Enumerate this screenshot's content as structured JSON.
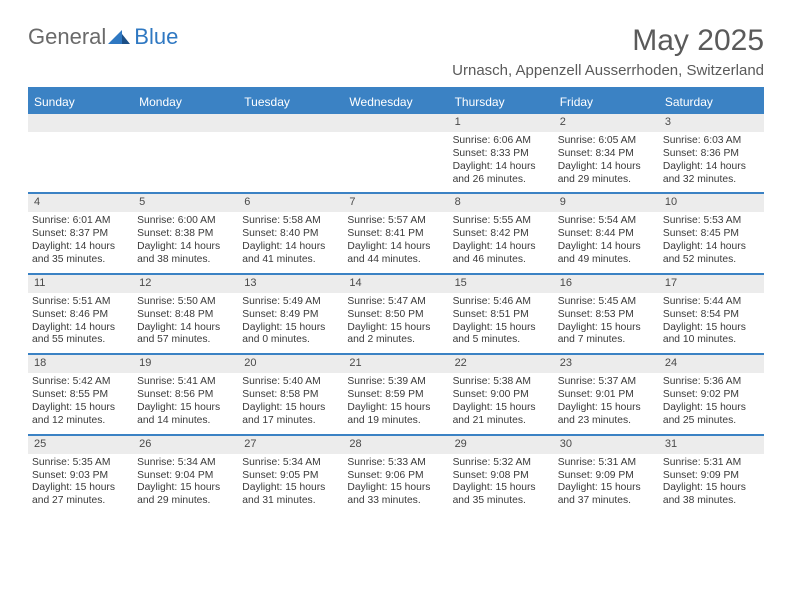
{
  "brand": {
    "part1": "General",
    "part2": "Blue"
  },
  "title": "May 2025",
  "location": "Urnasch, Appenzell Ausserrhoden, Switzerland",
  "colors": {
    "accent": "#3b82c4",
    "header_bg": "#3b82c4",
    "daynum_bg": "#ececec",
    "text": "#3a3a3a",
    "title": "#5a5a5a"
  },
  "weekdays": [
    "Sunday",
    "Monday",
    "Tuesday",
    "Wednesday",
    "Thursday",
    "Friday",
    "Saturday"
  ],
  "first_weekday_index": 4,
  "days": [
    {
      "n": 1,
      "sunrise": "6:06 AM",
      "sunset": "8:33 PM",
      "daylight": "14 hours and 26 minutes."
    },
    {
      "n": 2,
      "sunrise": "6:05 AM",
      "sunset": "8:34 PM",
      "daylight": "14 hours and 29 minutes."
    },
    {
      "n": 3,
      "sunrise": "6:03 AM",
      "sunset": "8:36 PM",
      "daylight": "14 hours and 32 minutes."
    },
    {
      "n": 4,
      "sunrise": "6:01 AM",
      "sunset": "8:37 PM",
      "daylight": "14 hours and 35 minutes."
    },
    {
      "n": 5,
      "sunrise": "6:00 AM",
      "sunset": "8:38 PM",
      "daylight": "14 hours and 38 minutes."
    },
    {
      "n": 6,
      "sunrise": "5:58 AM",
      "sunset": "8:40 PM",
      "daylight": "14 hours and 41 minutes."
    },
    {
      "n": 7,
      "sunrise": "5:57 AM",
      "sunset": "8:41 PM",
      "daylight": "14 hours and 44 minutes."
    },
    {
      "n": 8,
      "sunrise": "5:55 AM",
      "sunset": "8:42 PM",
      "daylight": "14 hours and 46 minutes."
    },
    {
      "n": 9,
      "sunrise": "5:54 AM",
      "sunset": "8:44 PM",
      "daylight": "14 hours and 49 minutes."
    },
    {
      "n": 10,
      "sunrise": "5:53 AM",
      "sunset": "8:45 PM",
      "daylight": "14 hours and 52 minutes."
    },
    {
      "n": 11,
      "sunrise": "5:51 AM",
      "sunset": "8:46 PM",
      "daylight": "14 hours and 55 minutes."
    },
    {
      "n": 12,
      "sunrise": "5:50 AM",
      "sunset": "8:48 PM",
      "daylight": "14 hours and 57 minutes."
    },
    {
      "n": 13,
      "sunrise": "5:49 AM",
      "sunset": "8:49 PM",
      "daylight": "15 hours and 0 minutes."
    },
    {
      "n": 14,
      "sunrise": "5:47 AM",
      "sunset": "8:50 PM",
      "daylight": "15 hours and 2 minutes."
    },
    {
      "n": 15,
      "sunrise": "5:46 AM",
      "sunset": "8:51 PM",
      "daylight": "15 hours and 5 minutes."
    },
    {
      "n": 16,
      "sunrise": "5:45 AM",
      "sunset": "8:53 PM",
      "daylight": "15 hours and 7 minutes."
    },
    {
      "n": 17,
      "sunrise": "5:44 AM",
      "sunset": "8:54 PM",
      "daylight": "15 hours and 10 minutes."
    },
    {
      "n": 18,
      "sunrise": "5:42 AM",
      "sunset": "8:55 PM",
      "daylight": "15 hours and 12 minutes."
    },
    {
      "n": 19,
      "sunrise": "5:41 AM",
      "sunset": "8:56 PM",
      "daylight": "15 hours and 14 minutes."
    },
    {
      "n": 20,
      "sunrise": "5:40 AM",
      "sunset": "8:58 PM",
      "daylight": "15 hours and 17 minutes."
    },
    {
      "n": 21,
      "sunrise": "5:39 AM",
      "sunset": "8:59 PM",
      "daylight": "15 hours and 19 minutes."
    },
    {
      "n": 22,
      "sunrise": "5:38 AM",
      "sunset": "9:00 PM",
      "daylight": "15 hours and 21 minutes."
    },
    {
      "n": 23,
      "sunrise": "5:37 AM",
      "sunset": "9:01 PM",
      "daylight": "15 hours and 23 minutes."
    },
    {
      "n": 24,
      "sunrise": "5:36 AM",
      "sunset": "9:02 PM",
      "daylight": "15 hours and 25 minutes."
    },
    {
      "n": 25,
      "sunrise": "5:35 AM",
      "sunset": "9:03 PM",
      "daylight": "15 hours and 27 minutes."
    },
    {
      "n": 26,
      "sunrise": "5:34 AM",
      "sunset": "9:04 PM",
      "daylight": "15 hours and 29 minutes."
    },
    {
      "n": 27,
      "sunrise": "5:34 AM",
      "sunset": "9:05 PM",
      "daylight": "15 hours and 31 minutes."
    },
    {
      "n": 28,
      "sunrise": "5:33 AM",
      "sunset": "9:06 PM",
      "daylight": "15 hours and 33 minutes."
    },
    {
      "n": 29,
      "sunrise": "5:32 AM",
      "sunset": "9:08 PM",
      "daylight": "15 hours and 35 minutes."
    },
    {
      "n": 30,
      "sunrise": "5:31 AM",
      "sunset": "9:09 PM",
      "daylight": "15 hours and 37 minutes."
    },
    {
      "n": 31,
      "sunrise": "5:31 AM",
      "sunset": "9:09 PM",
      "daylight": "15 hours and 38 minutes."
    }
  ],
  "labels": {
    "sunrise": "Sunrise:",
    "sunset": "Sunset:",
    "daylight": "Daylight:"
  }
}
